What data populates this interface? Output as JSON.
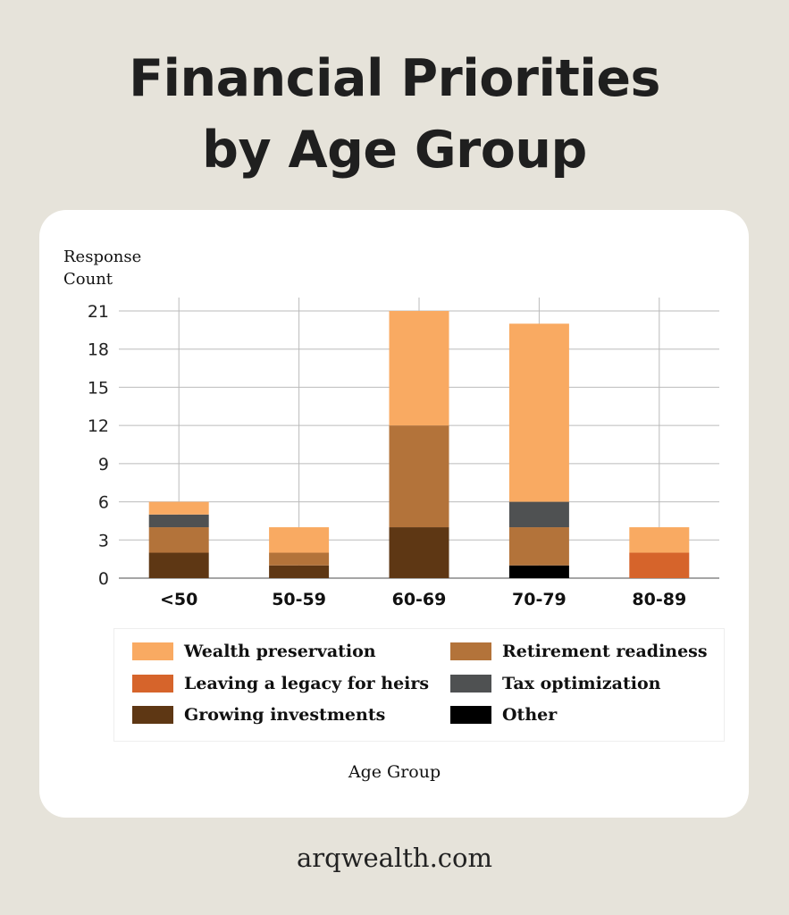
{
  "title_lines": [
    "Financial Priorities",
    "by Age Group"
  ],
  "footer": "arqwealth.com",
  "chart_data": {
    "type": "bar",
    "stacked": true,
    "ylabel_lines": [
      "Response",
      "Count"
    ],
    "xlabel": "Age Group",
    "ylim": [
      0,
      21
    ],
    "yticks": [
      0,
      3,
      6,
      9,
      12,
      15,
      18,
      21
    ],
    "grid": true,
    "legend_placement": "bottom",
    "categories": [
      "<50",
      "50-59",
      "60-69",
      "70-79",
      "80-89"
    ],
    "series": [
      {
        "name": "Other",
        "color": "#000000",
        "values": [
          0,
          0,
          0,
          1,
          0
        ]
      },
      {
        "name": "Growing investments",
        "color": "#5e3714",
        "values": [
          2,
          1,
          4,
          0,
          0
        ]
      },
      {
        "name": "Leaving a legacy for heirs",
        "color": "#d6642b",
        "values": [
          0,
          0,
          0,
          0,
          2
        ]
      },
      {
        "name": "Retirement readiness",
        "color": "#b3733a",
        "values": [
          2,
          1,
          8,
          3,
          0
        ]
      },
      {
        "name": "Tax optimization",
        "color": "#4f5152",
        "values": [
          1,
          0,
          0,
          2,
          0
        ]
      },
      {
        "name": "Wealth preservation",
        "color": "#f9aa62",
        "values": [
          1,
          2,
          9,
          14,
          2
        ]
      }
    ],
    "legend_order": [
      "Wealth preservation",
      "Retirement readiness",
      "Leaving a legacy for heirs",
      "Tax optimization",
      "Growing investments",
      "Other"
    ]
  }
}
